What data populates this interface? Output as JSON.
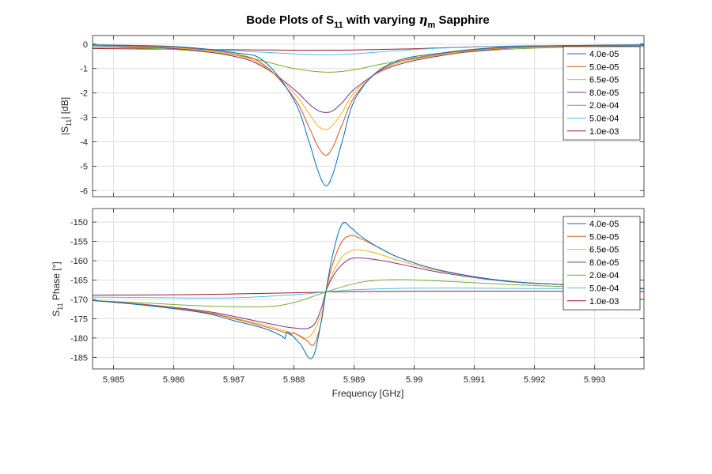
{
  "chart_data": {
    "type": "line",
    "title": {
      "prefix": "Bode Plots of S",
      "subscript": "11",
      "middle": " with varying ",
      "symbol": "η",
      "symbol_subscript": "m",
      "suffix": " Sapphire"
    },
    "xlabel": "Frequency [GHz]",
    "xlim": [
      5.98465,
      5.99382
    ],
    "xticks": [
      5.985,
      5.986,
      5.987,
      5.988,
      5.989,
      5.99,
      5.991,
      5.992,
      5.993
    ],
    "xtick_labels": [
      "5.985",
      "5.986",
      "5.987",
      "5.988",
      "5.989",
      "5.99",
      "5.991",
      "5.992",
      "5.993"
    ],
    "grid": true,
    "legend_placement": "top-right",
    "resonance_ghz": 5.98853,
    "legend": [
      "4.0e-05",
      "5.0e-05",
      "6.5e-05",
      "8.0e-05",
      "2.0e-04",
      "5.0e-04",
      "1.0e-03"
    ],
    "colors": [
      "#0072BD",
      "#D95319",
      "#EDB120",
      "#7E2F8E",
      "#77AC30",
      "#4DBEEE",
      "#A2142F"
    ],
    "magnitude": {
      "ylabel_parts": [
        "|S",
        "11",
        "| [dB]"
      ],
      "ylim": [
        -6.25,
        0.35
      ],
      "yticks": [
        0,
        -1,
        -2,
        -3,
        -4,
        -5,
        -6
      ],
      "ytick_labels": [
        "0",
        "-1",
        "-2",
        "-3",
        "-4",
        "-5",
        "-6"
      ],
      "series": [
        {
          "name": "4.0e-05",
          "x": [
            5.98465,
            5.986,
            5.987,
            5.9875,
            5.988,
            5.98825,
            5.9884,
            5.98853,
            5.98865,
            5.9888,
            5.98905,
            5.9896,
            5.9905,
            5.9915,
            5.9925,
            5.99382
          ],
          "values": [
            -0.03,
            -0.1,
            -0.35,
            -0.7,
            -2.3,
            -4.0,
            -5.2,
            -5.8,
            -5.3,
            -4.0,
            -2.1,
            -0.8,
            -0.35,
            -0.12,
            -0.06,
            -0.03
          ]
        },
        {
          "name": "5.0e-05",
          "x": [
            5.98465,
            5.986,
            5.987,
            5.9875,
            5.988,
            5.98825,
            5.9884,
            5.98853,
            5.98865,
            5.9888,
            5.98905,
            5.9896,
            5.9905,
            5.9915,
            5.9925,
            5.99382
          ],
          "values": [
            -0.04,
            -0.12,
            -0.4,
            -0.85,
            -2.2,
            -3.4,
            -4.2,
            -4.55,
            -4.2,
            -3.3,
            -2.0,
            -0.85,
            -0.38,
            -0.14,
            -0.07,
            -0.04
          ]
        },
        {
          "name": "6.5e-05",
          "x": [
            5.98465,
            5.986,
            5.987,
            5.9875,
            5.988,
            5.98825,
            5.9884,
            5.98853,
            5.98865,
            5.9888,
            5.98905,
            5.9896,
            5.9905,
            5.9915,
            5.9925,
            5.99382
          ],
          "values": [
            -0.05,
            -0.15,
            -0.45,
            -0.9,
            -2.0,
            -2.85,
            -3.35,
            -3.5,
            -3.3,
            -2.8,
            -1.85,
            -0.9,
            -0.42,
            -0.16,
            -0.09,
            -0.05
          ]
        },
        {
          "name": "8.0e-05",
          "x": [
            5.98465,
            5.986,
            5.987,
            5.9875,
            5.988,
            5.98825,
            5.9884,
            5.98853,
            5.98865,
            5.9888,
            5.98905,
            5.9896,
            5.9905,
            5.9915,
            5.9925,
            5.99382
          ],
          "values": [
            -0.06,
            -0.18,
            -0.5,
            -0.95,
            -1.85,
            -2.45,
            -2.72,
            -2.8,
            -2.72,
            -2.4,
            -1.75,
            -0.95,
            -0.45,
            -0.18,
            -0.1,
            -0.06
          ]
        },
        {
          "name": "2.0e-04",
          "x": [
            5.98465,
            5.986,
            5.987,
            5.9875,
            5.988,
            5.98853,
            5.989,
            5.9895,
            5.9905,
            5.9915,
            5.9925,
            5.99382
          ],
          "values": [
            -0.12,
            -0.22,
            -0.45,
            -0.7,
            -1.0,
            -1.15,
            -1.05,
            -0.8,
            -0.42,
            -0.22,
            -0.13,
            -0.09
          ]
        },
        {
          "name": "5.0e-04",
          "x": [
            5.98465,
            5.986,
            5.987,
            5.988,
            5.98853,
            5.989,
            5.99,
            5.991,
            5.992,
            5.99382
          ],
          "values": [
            -0.12,
            -0.17,
            -0.27,
            -0.4,
            -0.44,
            -0.4,
            -0.22,
            -0.12,
            -0.08,
            -0.06
          ]
        },
        {
          "name": "1.0e-03",
          "x": [
            5.98465,
            5.986,
            5.987,
            5.988,
            5.98853,
            5.989,
            5.99,
            5.991,
            5.992,
            5.99382
          ],
          "values": [
            -0.18,
            -0.21,
            -0.23,
            -0.25,
            -0.25,
            -0.24,
            -0.19,
            -0.11,
            -0.07,
            -0.05
          ]
        }
      ]
    },
    "phase": {
      "ylabel_parts": [
        "S",
        "11",
        " Phase [°]"
      ],
      "ylim": [
        -188,
        -146.5
      ],
      "yticks": [
        -150,
        -155,
        -160,
        -165,
        -170,
        -175,
        -180,
        -185
      ],
      "ytick_labels": [
        "-150",
        "-155",
        "-160",
        "-165",
        "-170",
        "-175",
        "-180",
        "-185"
      ],
      "series": [
        {
          "name": "4.0e-05",
          "x": [
            5.98465,
            5.9855,
            5.9865,
            5.987,
            5.9875,
            5.9878,
            5.98785,
            5.9879,
            5.9881,
            5.9883,
            5.98845,
            5.98853,
            5.98865,
            5.9888,
            5.98895,
            5.9891,
            5.9894,
            5.9898,
            5.9905,
            5.9915,
            5.9925,
            5.99382
          ],
          "values": [
            -170.3,
            -171.5,
            -173.5,
            -175.5,
            -177.5,
            -179.5,
            -180.1,
            -178.5,
            -181.5,
            -185.2,
            -176,
            -168,
            -158,
            -150.5,
            -151.5,
            -153.5,
            -156.5,
            -159.5,
            -162.7,
            -165.2,
            -166.2,
            -167.2
          ]
        },
        {
          "name": "5.0e-05",
          "x": [
            5.98465,
            5.9855,
            5.9865,
            5.987,
            5.9875,
            5.9879,
            5.98795,
            5.988,
            5.9882,
            5.98833,
            5.98845,
            5.98853,
            5.98865,
            5.9888,
            5.98895,
            5.9891,
            5.9894,
            5.9898,
            5.9905,
            5.9915,
            5.9925,
            5.99382
          ],
          "values": [
            -170.3,
            -171.4,
            -173.3,
            -175.0,
            -177.0,
            -178.8,
            -179.2,
            -178.7,
            -180.5,
            -181.7,
            -176,
            -168,
            -160.5,
            -155.0,
            -153.5,
            -154.2,
            -156.5,
            -159.5,
            -162.7,
            -165.2,
            -166.2,
            -167.2
          ]
        },
        {
          "name": "6.5e-05",
          "x": [
            5.98465,
            5.9855,
            5.9865,
            5.987,
            5.9875,
            5.988,
            5.98825,
            5.98845,
            5.98853,
            5.98865,
            5.9888,
            5.98895,
            5.9891,
            5.9894,
            5.9898,
            5.9905,
            5.9915,
            5.9925,
            5.99382
          ],
          "values": [
            -170.3,
            -171.4,
            -173.2,
            -174.8,
            -176.6,
            -178.8,
            -179.7,
            -174,
            -168,
            -163,
            -159.0,
            -157.5,
            -157.2,
            -158.2,
            -160.2,
            -162.9,
            -165.2,
            -166.2,
            -167.2
          ]
        },
        {
          "name": "8.0e-05",
          "x": [
            5.98465,
            5.9855,
            5.9865,
            5.987,
            5.9875,
            5.988,
            5.9883,
            5.98845,
            5.98853,
            5.98865,
            5.9888,
            5.989,
            5.9894,
            5.9898,
            5.9905,
            5.9915,
            5.9925,
            5.99382
          ],
          "values": [
            -170.3,
            -171.3,
            -173.0,
            -174.4,
            -176.0,
            -177.4,
            -177.0,
            -172.5,
            -168,
            -164,
            -161.0,
            -159.3,
            -159.8,
            -161.0,
            -163.2,
            -165.3,
            -166.2,
            -167.2
          ]
        },
        {
          "name": "2.0e-04",
          "x": [
            5.98465,
            5.9855,
            5.9865,
            5.9875,
            5.988,
            5.98853,
            5.9891,
            5.9897,
            5.9905,
            5.9915,
            5.9925,
            5.99382
          ],
          "values": [
            -170.3,
            -170.9,
            -171.7,
            -171.9,
            -170.8,
            -168.1,
            -165.6,
            -164.9,
            -165.3,
            -166.1,
            -166.7,
            -167.2
          ]
        },
        {
          "name": "5.0e-04",
          "x": [
            5.98465,
            5.986,
            5.987,
            5.988,
            5.98853,
            5.989,
            5.99,
            5.991,
            5.992,
            5.99382
          ],
          "values": [
            -169.4,
            -169.6,
            -169.6,
            -168.8,
            -168.1,
            -167.5,
            -167.1,
            -167.1,
            -167.2,
            -167.3
          ]
        },
        {
          "name": "1.0e-03",
          "x": [
            5.98465,
            5.986,
            5.987,
            5.988,
            5.98853,
            5.989,
            5.99,
            5.991,
            5.992,
            5.99382
          ],
          "values": [
            -168.9,
            -168.8,
            -168.6,
            -168.3,
            -168.1,
            -168.0,
            -167.9,
            -167.9,
            -167.9,
            -168.0
          ]
        }
      ]
    }
  }
}
